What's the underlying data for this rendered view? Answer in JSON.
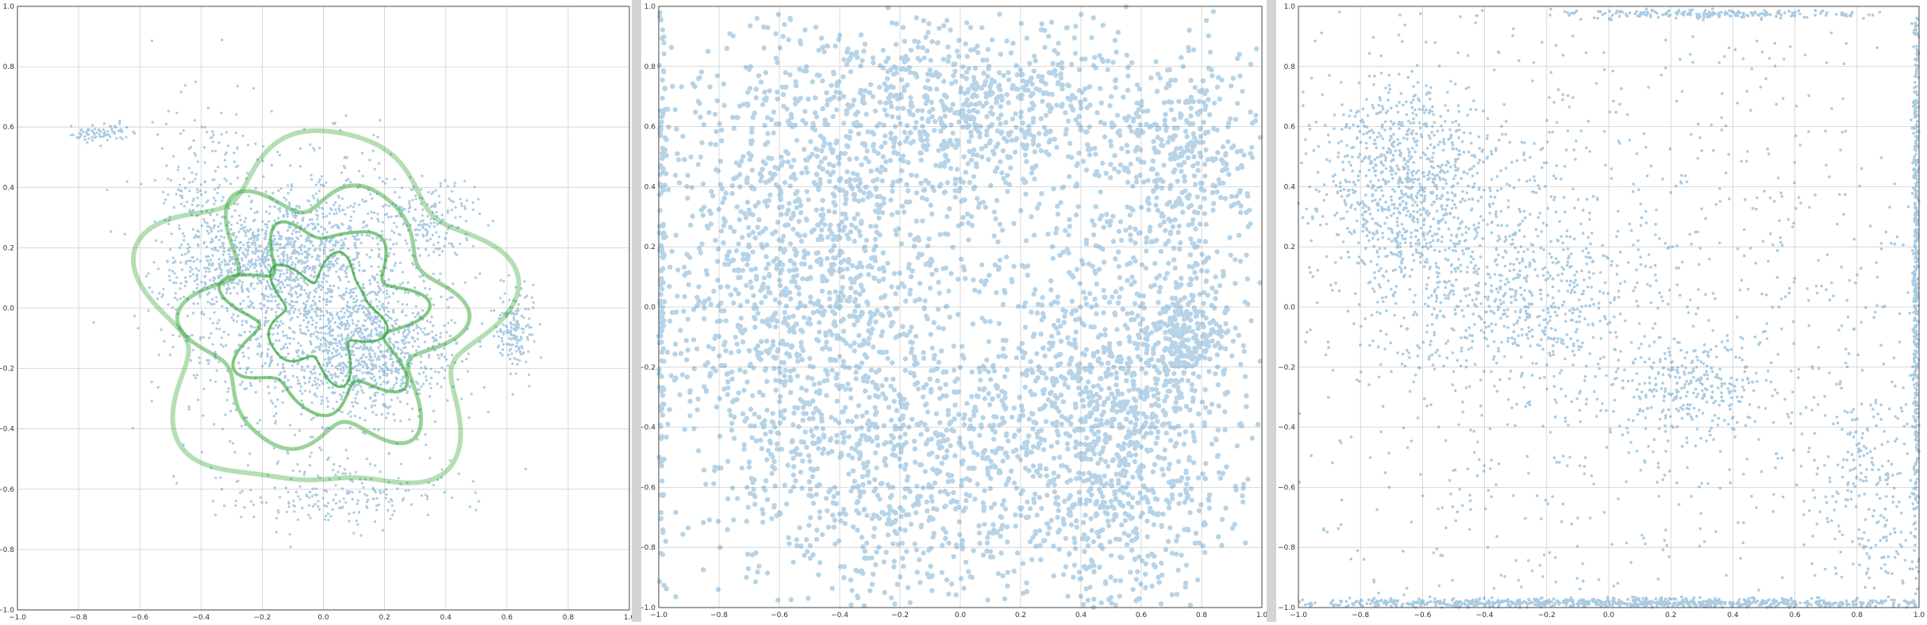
{
  "figure": {
    "background": "#ffffff",
    "divider_color": "#d4d4d4"
  },
  "chart_data": [
    {
      "type": "scatter",
      "xlim": [
        -1.0,
        1.0
      ],
      "ylim": [
        -1.0,
        1.0
      ],
      "xticks": [
        "−1.0",
        "−0.8",
        "−0.6",
        "−0.4",
        "−0.2",
        "0.0",
        "0.2",
        "0.4",
        "0.6",
        "0.8",
        "1.0"
      ],
      "yticks": [
        "−1.0",
        "−0.8",
        "−0.6",
        "−0.4",
        "−0.2",
        "0.0",
        "0.2",
        "0.4",
        "0.6",
        "0.8",
        "1.0"
      ],
      "grid": true,
      "point_color": "#1f77b4",
      "contour_color": "#2ca02c",
      "clusters": [
        {
          "cx": -0.05,
          "cy": 0.05,
          "sx": 0.22,
          "sy": 0.22,
          "n": 1400
        },
        {
          "cx": 0.15,
          "cy": -0.15,
          "sx": 0.13,
          "sy": 0.1,
          "n": 700
        },
        {
          "cx": -0.15,
          "cy": 0.18,
          "sx": 0.15,
          "sy": 0.08,
          "n": 500
        },
        {
          "cx": 0.63,
          "cy": -0.08,
          "sx": 0.03,
          "sy": 0.07,
          "n": 160
        },
        {
          "cx": 0.35,
          "cy": 0.3,
          "sx": 0.07,
          "sy": 0.06,
          "n": 150
        },
        {
          "cx": -0.73,
          "cy": 0.58,
          "sx": 0.06,
          "sy": 0.015,
          "n": 80
        },
        {
          "cx": 0.05,
          "cy": -0.62,
          "sx": 0.2,
          "sy": 0.06,
          "n": 200
        },
        {
          "cx": -0.4,
          "cy": 0.3,
          "sx": 0.08,
          "sy": 0.2,
          "n": 220
        }
      ],
      "contour_levels": [
        {
          "r": 0.55,
          "amp": 0.07,
          "k": 5,
          "phase": 0.3
        },
        {
          "r": 0.4,
          "amp": 0.06,
          "k": 6,
          "phase": 1.1
        },
        {
          "r": 0.28,
          "amp": 0.05,
          "k": 7,
          "phase": 0.5
        },
        {
          "r": 0.17,
          "amp": 0.04,
          "k": 5,
          "phase": 2.0
        }
      ],
      "contour_center": [
        0.0,
        -0.03
      ]
    },
    {
      "type": "scatter",
      "xlim": [
        -1.0,
        1.0
      ],
      "ylim": [
        -1.0,
        1.0
      ],
      "xticks": [
        "−1.0",
        "−0.8",
        "−0.6",
        "−0.4",
        "−0.2",
        "0.0",
        "0.2",
        "0.4",
        "0.6",
        "0.8",
        "1.0"
      ],
      "yticks": [
        "−1.0",
        "−0.8",
        "−0.6",
        "−0.4",
        "−0.2",
        "0.0",
        "0.2",
        "0.4",
        "0.6",
        "0.8",
        "1.0"
      ],
      "grid": true,
      "point_color": "#1f77b4",
      "clusters": [
        {
          "cx": -0.55,
          "cy": 0.1,
          "sx": 0.25,
          "sy": 0.35,
          "n": 1100
        },
        {
          "cx": 0.5,
          "cy": -0.4,
          "sx": 0.2,
          "sy": 0.3,
          "n": 1100
        },
        {
          "cx": 0.0,
          "cy": 0.65,
          "sx": 0.35,
          "sy": 0.15,
          "n": 800
        },
        {
          "cx": -0.2,
          "cy": -0.55,
          "sx": 0.3,
          "sy": 0.25,
          "n": 700
        },
        {
          "cx": 0.75,
          "cy": 0.45,
          "sx": 0.12,
          "sy": 0.2,
          "n": 350
        },
        {
          "cx": 0.75,
          "cy": -0.1,
          "sx": 0.06,
          "sy": 0.08,
          "n": 200
        },
        {
          "cx": -0.99,
          "cy": 0.2,
          "sx": 0.005,
          "sy": 0.6,
          "n": 150
        },
        {
          "cx": 0.0,
          "cy": 0.0,
          "sx": 0.6,
          "sy": 0.6,
          "n": 800
        }
      ]
    },
    {
      "type": "scatter",
      "xlim": [
        -1.0,
        1.0
      ],
      "ylim": [
        -1.0,
        1.0
      ],
      "xticks": [
        "−1.0",
        "−0.8",
        "−0.6",
        "−0.4",
        "−0.2",
        "0.0",
        "0.2",
        "0.4",
        "0.6",
        "0.8",
        "1.0"
      ],
      "yticks": [
        "−1.0",
        "−0.8",
        "−0.6",
        "−0.4",
        "−0.2",
        "0.0",
        "0.2",
        "0.4",
        "0.6",
        "0.8",
        "1.0"
      ],
      "grid": true,
      "point_color": "#1f77b4",
      "clusters": [
        {
          "cx": -0.65,
          "cy": 0.4,
          "sx": 0.15,
          "sy": 0.18,
          "n": 900
        },
        {
          "cx": -0.3,
          "cy": 0.05,
          "sx": 0.2,
          "sy": 0.15,
          "n": 500
        },
        {
          "cx": 0.25,
          "cy": -0.28,
          "sx": 0.12,
          "sy": 0.08,
          "n": 250
        },
        {
          "cx": 0.0,
          "cy": -0.985,
          "sx": 0.6,
          "sy": 0.008,
          "n": 900
        },
        {
          "cx": 0.99,
          "cy": 0.2,
          "sx": 0.005,
          "sy": 0.55,
          "n": 500
        },
        {
          "cx": 0.3,
          "cy": 0.975,
          "sx": 0.25,
          "sy": 0.008,
          "n": 200
        },
        {
          "cx": 0.85,
          "cy": -0.6,
          "sx": 0.1,
          "sy": 0.2,
          "n": 250
        },
        {
          "cx": 0.0,
          "cy": 0.0,
          "sx": 0.65,
          "sy": 0.65,
          "n": 1400
        }
      ]
    }
  ]
}
